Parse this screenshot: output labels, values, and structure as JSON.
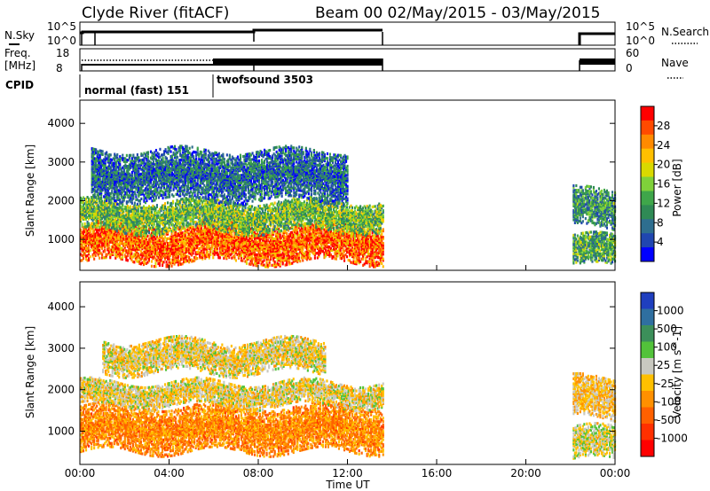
{
  "header": {
    "station": "Clyde River (fitACF)",
    "beam_date": "Beam 00  02/May/2015 - 03/May/2015"
  },
  "panels": {
    "nsky_label": "N.Sky",
    "nsearch_label": "N.Search",
    "freq_label": "Freq.",
    "freq_unit": "[MHz]",
    "nave_label": "Nave",
    "cpid_label": "CPID",
    "nsky_ticks": [
      "10^5",
      "10^0"
    ],
    "nsearch_ticks": [
      "10^5",
      "10^0"
    ],
    "freq_ticks": [
      "18",
      "8"
    ],
    "nave_ticks": [
      "60",
      "0"
    ],
    "cpid_modes": [
      {
        "name": "normal (fast) 151",
        "start": 0.0,
        "end": 6.0
      },
      {
        "name": "twofsound 3503",
        "start": 6.0,
        "end": 13.6
      }
    ]
  },
  "colorbars": {
    "power": {
      "label": "Power [dB]",
      "ticks": [
        "28",
        "24",
        "20",
        "16",
        "12",
        "8",
        "4"
      ],
      "colors": [
        "#ff0000",
        "#ff4a00",
        "#ff8a00",
        "#ffbf00",
        "#d9d900",
        "#7fd13a",
        "#3fa64a",
        "#2f8a55",
        "#2e6e8f",
        "#2046b0",
        "#0000ff"
      ]
    },
    "velocity": {
      "label": "Velocity [m s^-1]",
      "ticks": [
        "1000",
        "500",
        "100",
        "25",
        "-25",
        "-100",
        "-500",
        "-1000"
      ],
      "colors": [
        "#1f3fbf",
        "#2f6fa0",
        "#3c8f5a",
        "#52c23a",
        "#c8c8c0",
        "#ffc000",
        "#ff9000",
        "#ff6000",
        "#ff3000",
        "#ff0000"
      ]
    }
  },
  "x_axis": {
    "label": "Time UT",
    "ticks": [
      "00:00",
      "04:00",
      "08:00",
      "12:00",
      "16:00",
      "20:00",
      "00:00"
    ]
  },
  "y_axis": {
    "label": "Slant Range [km]",
    "ticks": [
      "1000",
      "2000",
      "3000",
      "4000"
    ]
  },
  "chart_data": [
    {
      "type": "heatmap",
      "title": "Power",
      "xlabel": "Time UT",
      "ylabel": "Slant Range [km]",
      "xlim": [
        0,
        24
      ],
      "ylim": [
        200,
        4600
      ],
      "colorbar_label": "Power [dB]",
      "colorbar_range": [
        0,
        32
      ],
      "data_coverage_hours": [
        [
          0.0,
          13.6
        ],
        [
          22.1,
          24.0
        ]
      ],
      "bands": [
        {
          "t0": 0.0,
          "t1": 13.6,
          "r0": 400,
          "r1": 1400,
          "power": 26
        },
        {
          "t0": 0.0,
          "t1": 13.6,
          "r0": 1200,
          "r1": 2000,
          "power": 14
        },
        {
          "t0": 0.5,
          "t1": 12.0,
          "r0": 2000,
          "r1": 3300,
          "power": 7
        },
        {
          "t0": 22.1,
          "t1": 24.0,
          "r0": 300,
          "r1": 1100,
          "power": 12
        },
        {
          "t0": 22.1,
          "t1": 24.0,
          "r0": 1300,
          "r1": 2300,
          "power": 10
        }
      ]
    },
    {
      "type": "heatmap",
      "title": "Velocity",
      "xlabel": "Time UT",
      "ylabel": "Slant Range [km]",
      "xlim": [
        0,
        24
      ],
      "ylim": [
        200,
        4600
      ],
      "colorbar_label": "Velocity [m s^-1]",
      "colorbar_range": [
        -1000,
        1000
      ],
      "data_coverage_hours": [
        [
          0.0,
          13.6
        ],
        [
          22.1,
          24.0
        ]
      ],
      "bands": [
        {
          "t0": 0.0,
          "t1": 13.6,
          "r0": 500,
          "r1": 1600,
          "velocity": -300
        },
        {
          "t0": 0.0,
          "t1": 13.6,
          "r0": 1600,
          "r1": 2200,
          "velocity": 0
        },
        {
          "t0": 1.0,
          "t1": 11.0,
          "r0": 2400,
          "r1": 3200,
          "velocity": 0
        },
        {
          "t0": 22.1,
          "t1": 24.0,
          "r0": 300,
          "r1": 1100,
          "velocity": 60
        },
        {
          "t0": 22.1,
          "t1": 24.0,
          "r0": 1300,
          "r1": 2300,
          "velocity": -80
        }
      ]
    }
  ]
}
